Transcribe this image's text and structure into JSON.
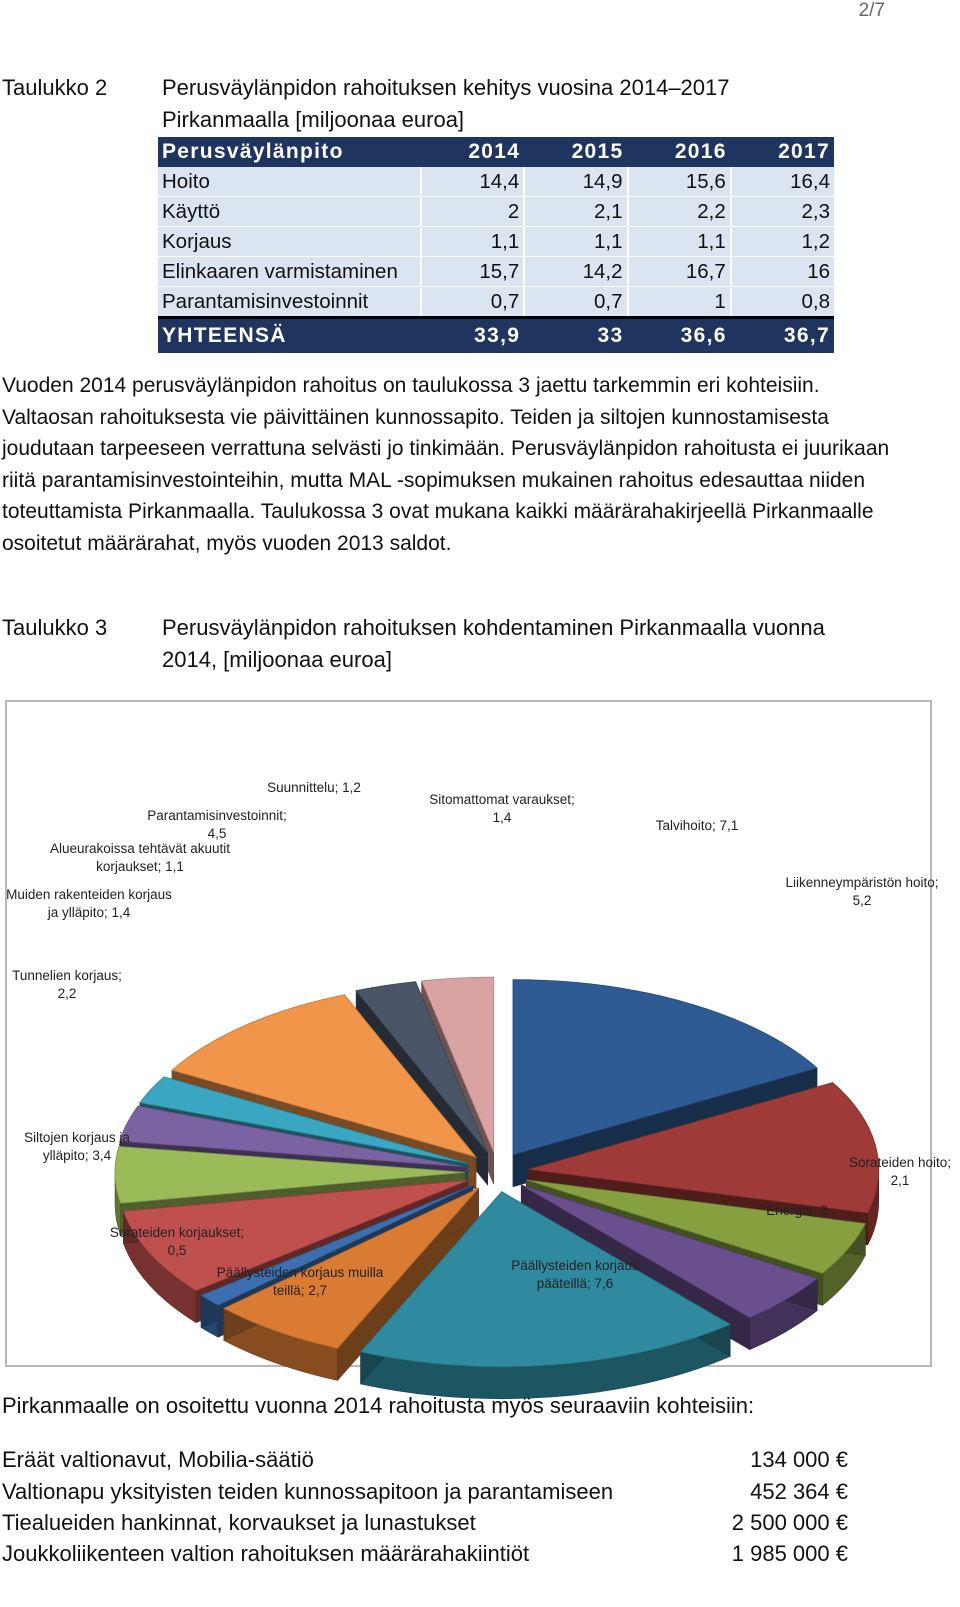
{
  "page_number": "2/7",
  "table2": {
    "label": "Taulukko 2",
    "caption_line1": "Perusväylänpidon rahoituksen kehitys vuosina 2014–2017",
    "caption_line2": "Pirkanmaalla [miljoonaa euroa]",
    "headers": [
      "Perusväylänpito",
      "2014",
      "2015",
      "2016",
      "2017"
    ],
    "rows": [
      [
        "Hoito",
        "14,4",
        "14,9",
        "15,6",
        "16,4"
      ],
      [
        "Käyttö",
        "2",
        "2,1",
        "2,2",
        "2,3"
      ],
      [
        "Korjaus",
        "1,1",
        "1,1",
        "1,1",
        "1,2"
      ],
      [
        "Elinkaaren varmistaminen",
        "15,7",
        "14,2",
        "16,7",
        "16"
      ],
      [
        "Parantamisinvestoinnit",
        "0,7",
        "0,7",
        "1",
        "0,8"
      ]
    ],
    "total": [
      "YHTEENSÄ",
      "33,9",
      "33",
      "36,6",
      "36,7"
    ]
  },
  "paragraph": "Vuoden 2014 perusväylänpidon rahoitus on taulukossa 3 jaettu tarkemmin eri kohteisiin. Valtaosan rahoituksesta vie päivittäinen kunnossapito. Teiden ja siltojen kunnostamisesta joudutaan tarpeeseen verrattuna selvästi jo tinkimään. Perusväylänpidon rahoitusta ei juurikaan riitä parantamisinvestointeihin, mutta MAL -sopimuksen mukainen rahoitus edesauttaa niiden toteuttamista Pirkanmaalla. Taulukossa 3 ovat mukana kaikki määrärahakirjeellä Pirkanmaalle osoitetut määrärahat, myös vuoden 2013 saldot.",
  "table3": {
    "label": "Taulukko 3",
    "caption_line1": "Perusväylänpidon rahoituksen kohdentaminen Pirkanmaalla vuonna",
    "caption_line2": "2014, [miljoonaa euroa]"
  },
  "chart_data": {
    "type": "pie",
    "style": "3d-exploded",
    "slices": [
      {
        "label": "Talvihoito; 7,1",
        "name": "Talvihoito",
        "value": 7.1,
        "color": "#2e5b94"
      },
      {
        "label": "Liikenneympäristön hoito; 5,2",
        "name": "Liikenneympäristön hoito",
        "value": 5.2,
        "color": "#9e3b38"
      },
      {
        "label": "Sorateiden hoito; 2,1",
        "name": "Sorateiden hoito",
        "value": 2.1,
        "color": "#86a040"
      },
      {
        "label": "Energia; 2",
        "name": "Energia",
        "value": 2.0,
        "color": "#6a4f8e"
      },
      {
        "label": "Päällysteiden korjaus pääteillä; 7,6",
        "name": "Päällysteiden korjaus pääteillä",
        "value": 7.6,
        "color": "#2f8aa0"
      },
      {
        "label": "Päällysteiden korjaus muilla teillä; 2,7",
        "name": "Päällysteiden korjaus muilla teillä",
        "value": 2.7,
        "color": "#d97b33"
      },
      {
        "label": "Sorateiden korjaukset; 0,5",
        "name": "Sorateiden korjaukset",
        "value": 0.5,
        "color": "#3d6fb0"
      },
      {
        "label": "Siltojen korjaus ja ylläpito; 3,4",
        "name": "Siltojen korjaus ja ylläpito",
        "value": 3.4,
        "color": "#c0504d"
      },
      {
        "label": "Tunnelien korjaus; 2,2",
        "name": "Tunnelien korjaus",
        "value": 2.2,
        "color": "#9bbb59"
      },
      {
        "label": "Muiden rakenteiden korjaus ja ylläpito; 1,4",
        "name": "Muiden rakenteiden korjaus ja ylläpito",
        "value": 1.4,
        "color": "#7b62a3"
      },
      {
        "label": "Alueurakoissa tehtävät akuutit korjaukset; 1,1",
        "name": "Alueurakoissa tehtävät akuutit korjaukset",
        "value": 1.1,
        "color": "#3aa7c2"
      },
      {
        "label": "Parantamisinvestoinnit; 4,5",
        "name": "Parantamisinvestoinnit",
        "value": 4.5,
        "color": "#f0954a"
      },
      {
        "label": "Suunnittelu; 1,2",
        "name": "Suunnittelu",
        "value": 1.2,
        "color": "#4a5567"
      },
      {
        "label": "Sitomattomat varaukset; 1,4",
        "name": "Sitomattomat varaukset",
        "value": 1.4,
        "color": "#d9a3a3"
      }
    ]
  },
  "after_chart": "Pirkanmaalle on osoitettu vuonna 2014 rahoitusta myös seuraaviin kohteisiin:",
  "allocations": [
    {
      "label": "Eräät valtionavut, Mobilia-säätiö",
      "amount": "134 000 €"
    },
    {
      "label": "Valtionapu yksityisten teiden kunnossapitoon ja parantamiseen",
      "amount": "452 364 €"
    },
    {
      "label": "Tiealueiden hankinnat, korvaukset ja lunastukset",
      "amount": "2 500 000 €"
    },
    {
      "label": "Joukkoliikenteen valtion rahoituksen määrärahakiintiöt",
      "amount": "1 985 000 €"
    }
  ]
}
